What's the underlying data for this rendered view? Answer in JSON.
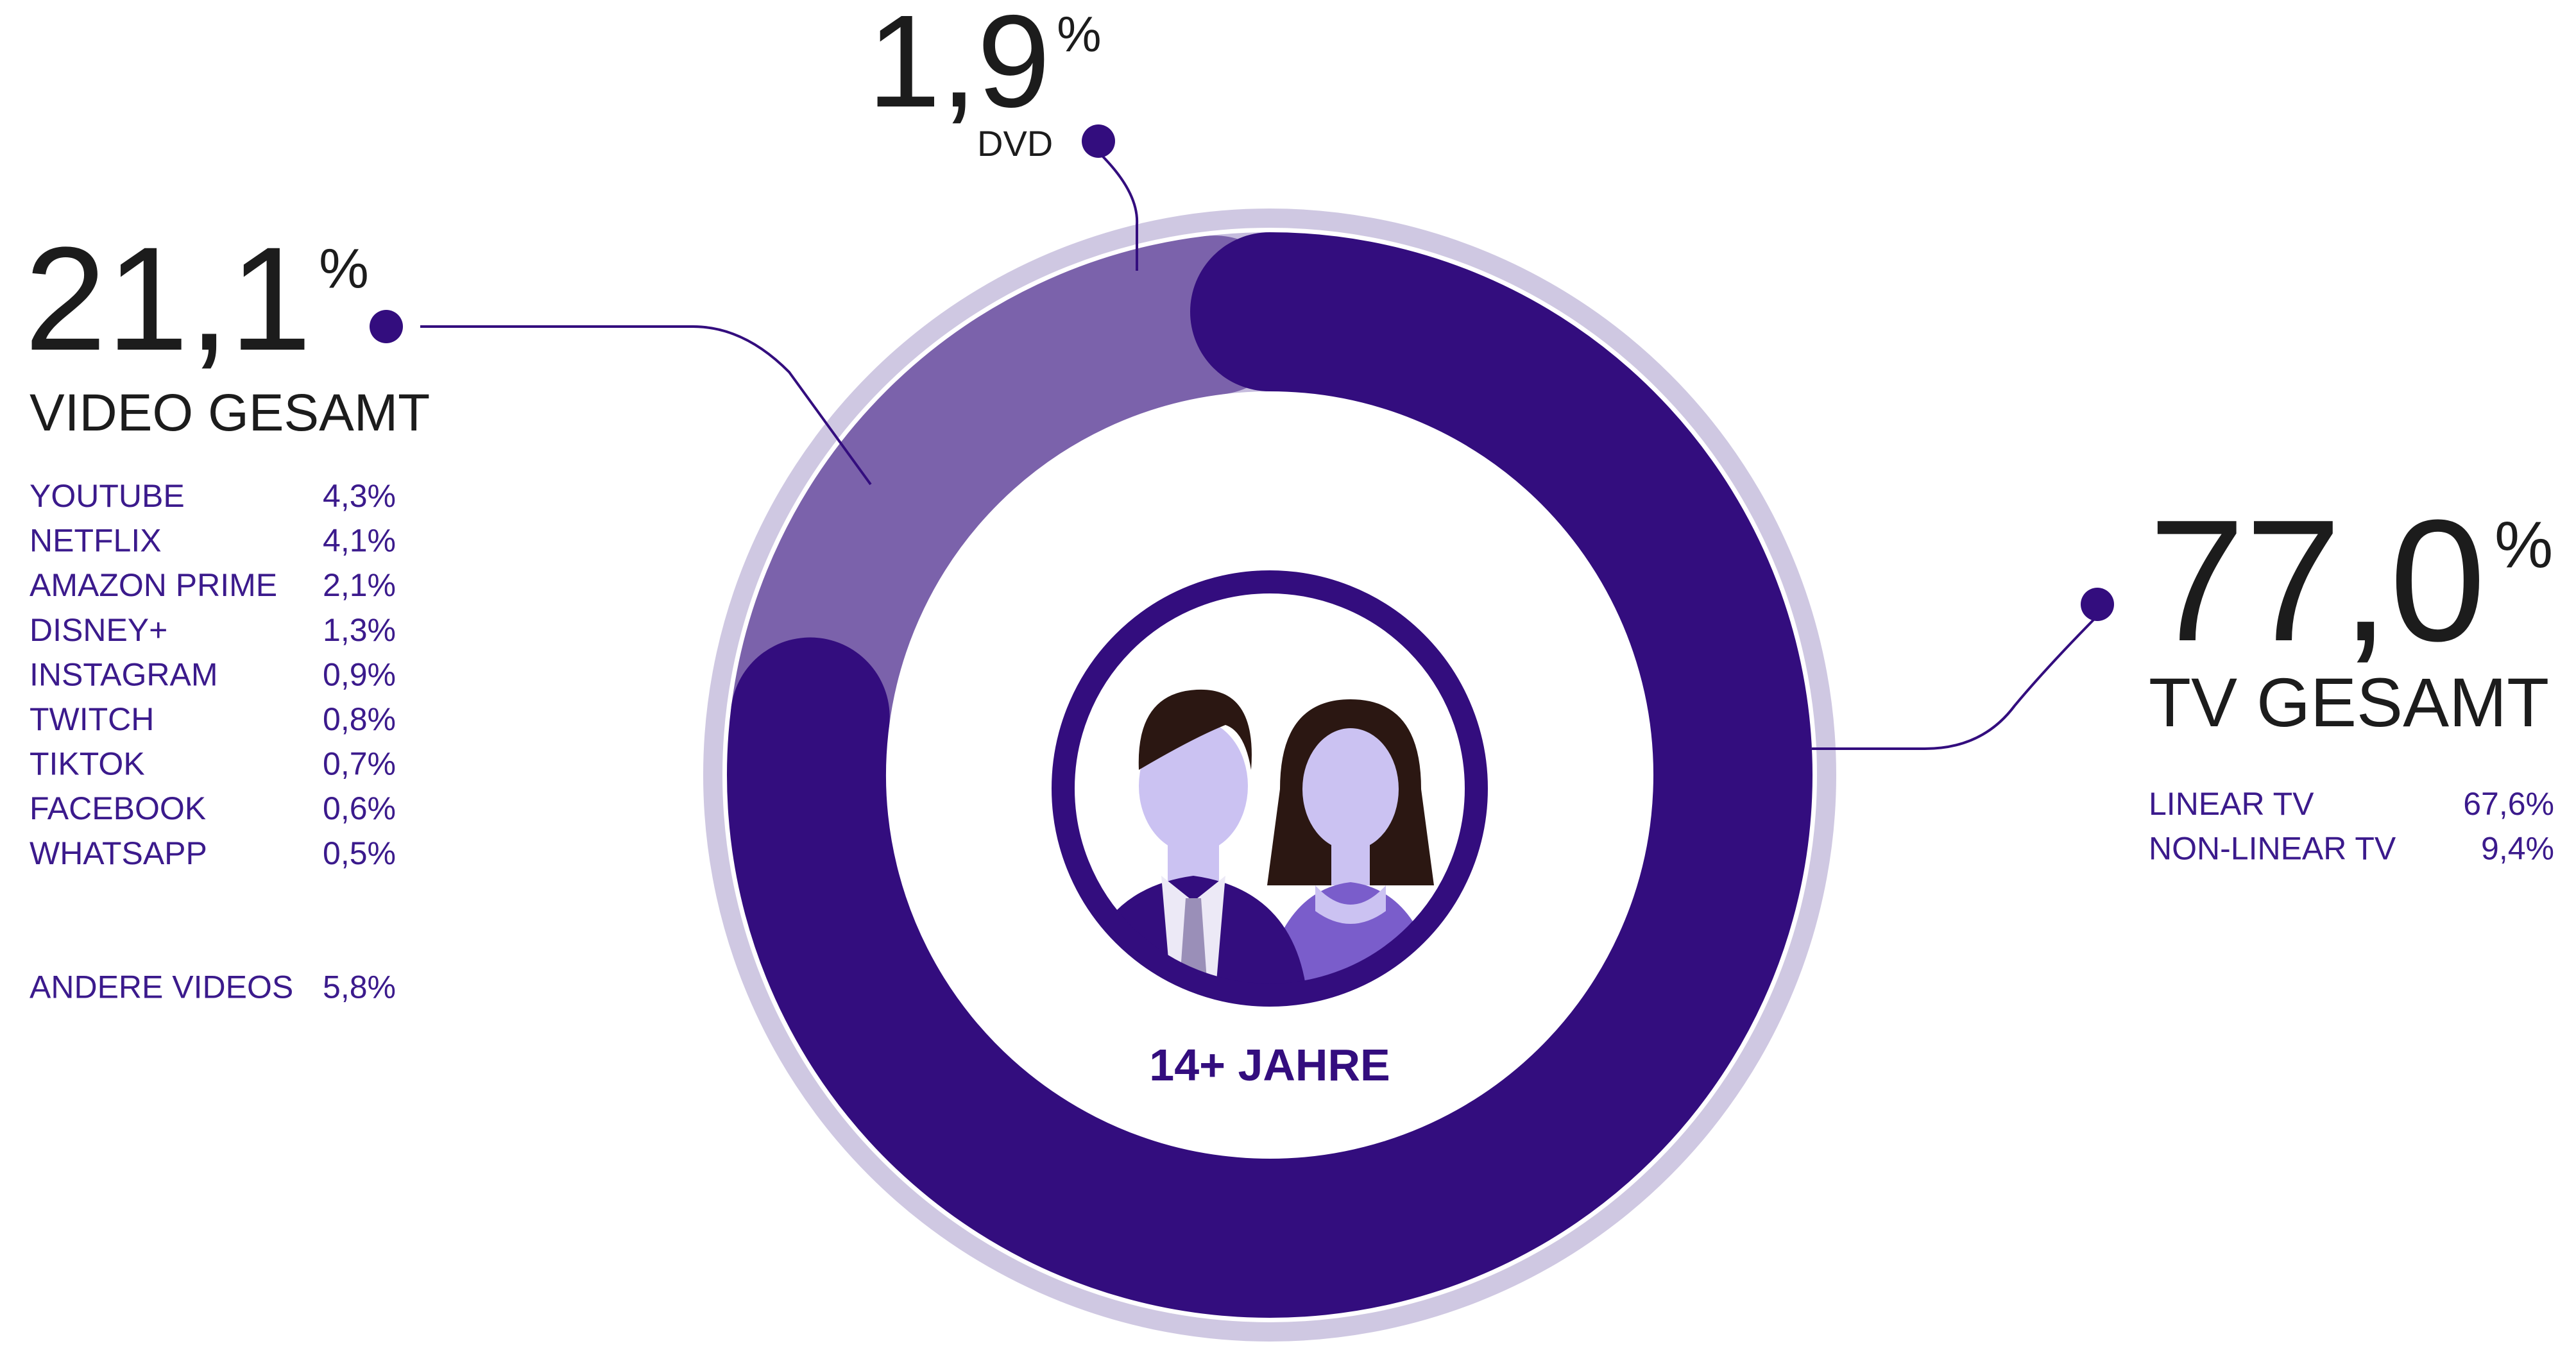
{
  "chart_data": {
    "type": "donut",
    "categories": [
      "TV GESAMT",
      "VIDEO GESAMT",
      "DVD"
    ],
    "values": [
      77.0,
      21.1,
      1.9
    ],
    "value_labels": [
      "77,0%",
      "21,1%",
      "1,9%"
    ],
    "colors": [
      "#330d7e",
      "#7b62ab",
      "#c5bbdd"
    ],
    "center_label": "14+ JAHRE",
    "tv_breakdown": {
      "categories": [
        "LINEAR TV",
        "NON-LINEAR TV"
      ],
      "values": [
        67.6,
        9.4
      ],
      "value_labels": [
        "67,6%",
        "9,4%"
      ]
    },
    "video_breakdown": {
      "categories": [
        "YOUTUBE",
        "NETFLIX",
        "AMAZON PRIME",
        "DISNEY+",
        "INSTAGRAM",
        "TWITCH",
        "TIKTOK",
        "FACEBOOK",
        "WHATSAPP",
        "ANDERE VIDEOS"
      ],
      "values": [
        4.3,
        4.1,
        2.1,
        1.3,
        0.9,
        0.8,
        0.7,
        0.6,
        0.5,
        5.8
      ],
      "value_labels": [
        "4,3%",
        "4,1%",
        "2,1%",
        "1,3%",
        "0,9%",
        "0,8%",
        "0,7%",
        "0,6%",
        "0,5%",
        "5,8%"
      ]
    }
  }
}
